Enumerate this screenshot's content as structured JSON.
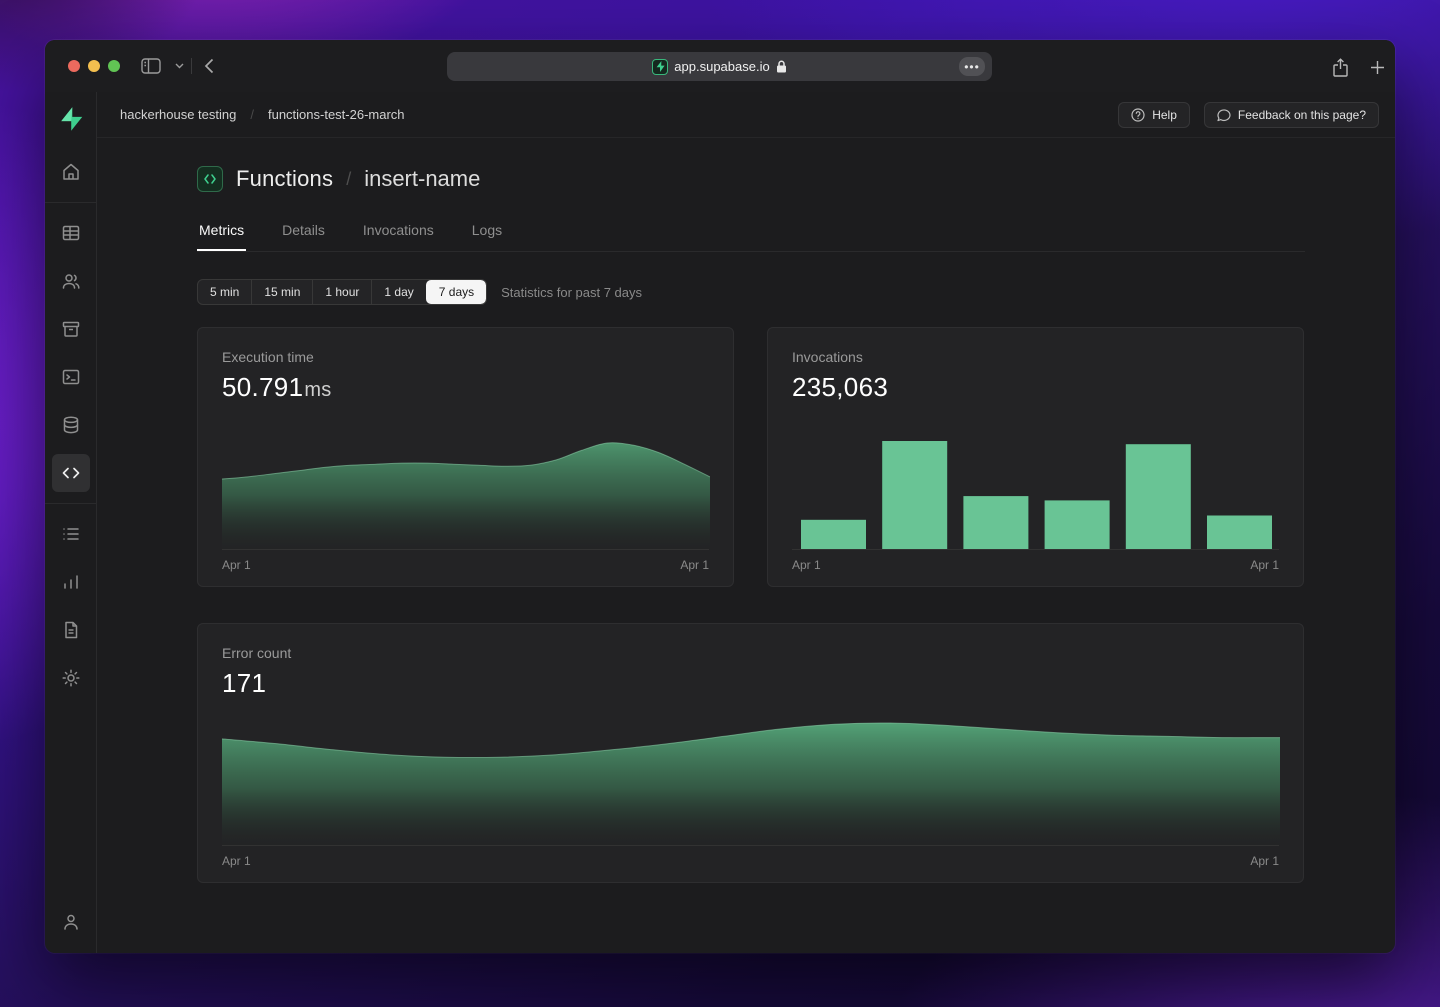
{
  "browser": {
    "url": "app.supabase.io",
    "window_controls": [
      "close",
      "minimize",
      "zoom"
    ],
    "toolbar_icons": [
      "sidebar-toggle",
      "chevron-down",
      "back",
      "page-more",
      "share",
      "new-tab"
    ]
  },
  "header": {
    "breadcrumb": [
      "hackerhouse testing",
      "functions-test-26-march"
    ],
    "separator": "/",
    "help_label": "Help",
    "feedback_label": "Feedback on this page?"
  },
  "sidebar": {
    "items": [
      {
        "name": "home"
      },
      {
        "name": "table-editor"
      },
      {
        "name": "auth"
      },
      {
        "name": "storage"
      },
      {
        "name": "sql-editor"
      },
      {
        "name": "database"
      },
      {
        "name": "functions",
        "active": true
      },
      {
        "name": "logs"
      },
      {
        "name": "reports"
      },
      {
        "name": "docs"
      },
      {
        "name": "settings"
      }
    ],
    "footer": {
      "name": "account"
    }
  },
  "page": {
    "title": "Functions",
    "title_separator": "/",
    "subtitle": "insert-name",
    "tabs": [
      {
        "label": "Metrics",
        "active": true
      },
      {
        "label": "Details",
        "active": false
      },
      {
        "label": "Invocations",
        "active": false
      },
      {
        "label": "Logs",
        "active": false
      }
    ],
    "time_ranges": [
      "5 min",
      "15 min",
      "1 hour",
      "1 day",
      "7 days"
    ],
    "selected_range": "7 days",
    "range_note": "Statistics for past 7 days"
  },
  "chart_data": [
    {
      "id": "execution_time",
      "type": "area",
      "title": "Execution time",
      "value": "50.791",
      "unit": "ms",
      "x_ticks": [
        "Apr 1",
        "Apr 1"
      ],
      "scale": "percent_of_peak",
      "values": [
        66,
        68,
        71,
        74,
        77,
        79,
        80,
        81,
        81,
        80,
        79,
        78,
        79,
        84,
        93,
        100,
        98,
        91,
        80,
        68
      ],
      "grid": false,
      "legend": false
    },
    {
      "id": "invocations",
      "type": "bar",
      "title": "Invocations",
      "value": "235,063",
      "unit": "",
      "x_ticks": [
        "Apr 1",
        "Apr 1"
      ],
      "scale": "percent_of_max",
      "values": [
        27,
        100,
        49,
        45,
        97,
        31
      ],
      "grid": false,
      "legend": false
    },
    {
      "id": "error_count",
      "type": "area",
      "title": "Error count",
      "value": "171",
      "unit": "",
      "x_ticks": [
        "Apr 1",
        "Apr 1"
      ],
      "scale": "percent_of_peak",
      "values": [
        87,
        83,
        78,
        74,
        72,
        72,
        74,
        78,
        83,
        89,
        95,
        99,
        100,
        98,
        95,
        92,
        90,
        89,
        88,
        88
      ],
      "grid": false,
      "legend": false
    }
  ],
  "colors": {
    "accent_green": "#3ecf8e",
    "bar_green": "#69c495",
    "area_top_green": "#57ab7d",
    "window_bg": "#1c1c1e",
    "card_bg": "#232325"
  }
}
